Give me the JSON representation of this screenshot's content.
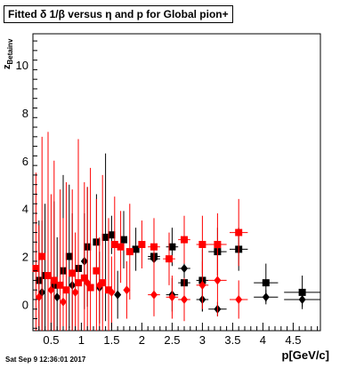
{
  "chart_data": {
    "type": "scatter",
    "title": "Fitted δ 1/β versus η and p for Global pion+",
    "xlabel": "p[GeV/c]",
    "ylabel": "z",
    "ylabel_sub": "Betainv",
    "xlim": [
      0.2,
      4.95
    ],
    "ylim": [
      -1.1,
      11.3
    ],
    "xticks": [
      "0.5",
      "1",
      "1.5",
      "2",
      "2.5",
      "3",
      "3.5",
      "4",
      "4.5"
    ],
    "xtick_values": [
      0.5,
      1.0,
      1.5,
      2.0,
      2.5,
      3.0,
      3.5,
      4.0,
      4.5
    ],
    "yticks": [
      "0",
      "2",
      "4",
      "6",
      "8",
      "10"
    ],
    "ytick_values": [
      0,
      2,
      4,
      6,
      8,
      10
    ],
    "colors": {
      "black": "#000000",
      "red": "#ff0000"
    },
    "series": [
      {
        "color": "#000000",
        "marker": "square",
        "points": [
          {
            "x": 0.3,
            "y": 1.0,
            "ex": 0.05,
            "ey": 2.5
          },
          {
            "x": 0.4,
            "y": 1.2,
            "ex": 0.05,
            "ey": 3.0
          },
          {
            "x": 0.55,
            "y": 0.8,
            "ex": 0.05,
            "ey": 3.5
          },
          {
            "x": 0.7,
            "y": 1.4,
            "ex": 0.05,
            "ey": 4.0
          },
          {
            "x": 0.8,
            "y": 2.0,
            "ex": 0.05,
            "ey": 3.0
          },
          {
            "x": 0.95,
            "y": 1.5,
            "ex": 0.05,
            "ey": 5.0
          },
          {
            "x": 1.1,
            "y": 2.4,
            "ex": 0.05,
            "ey": 2.5
          },
          {
            "x": 1.25,
            "y": 2.6,
            "ex": 0.05,
            "ey": 2.0
          },
          {
            "x": 1.4,
            "y": 2.8,
            "ex": 0.05,
            "ey": 3.5
          },
          {
            "x": 1.5,
            "y": 2.9,
            "ex": 0.05,
            "ey": 0.8
          },
          {
            "x": 1.7,
            "y": 2.7,
            "ex": 0.05,
            "ey": 1.2
          },
          {
            "x": 1.9,
            "y": 2.3,
            "ex": 0.05,
            "ey": 0.9
          },
          {
            "x": 2.2,
            "y": 2.0,
            "ex": 0.1,
            "ey": 0.7
          },
          {
            "x": 2.5,
            "y": 2.4,
            "ex": 0.1,
            "ey": 0.8
          },
          {
            "x": 2.7,
            "y": 0.9,
            "ex": 0.1,
            "ey": 1.1
          },
          {
            "x": 3.0,
            "y": 1.0,
            "ex": 0.1,
            "ey": 1.3
          },
          {
            "x": 3.25,
            "y": 2.2,
            "ex": 0.15,
            "ey": 1.0
          },
          {
            "x": 3.6,
            "y": 2.3,
            "ex": 0.15,
            "ey": 0.9
          },
          {
            "x": 4.05,
            "y": 0.9,
            "ex": 0.2,
            "ey": 0.8
          },
          {
            "x": 4.65,
            "y": 0.5,
            "ex": 0.3,
            "ey": 0.7
          }
        ]
      },
      {
        "color": "#000000",
        "marker": "diamond",
        "points": [
          {
            "x": 0.35,
            "y": 0.5,
            "ex": 0.05,
            "ey": 3.0
          },
          {
            "x": 0.6,
            "y": 0.3,
            "ex": 0.05,
            "ey": 2.5
          },
          {
            "x": 0.85,
            "y": 0.8,
            "ex": 0.05,
            "ey": 3.0
          },
          {
            "x": 1.05,
            "y": 1.8,
            "ex": 0.05,
            "ey": 2.0
          },
          {
            "x": 1.3,
            "y": 0.7,
            "ex": 0.05,
            "ey": 1.5
          },
          {
            "x": 1.6,
            "y": 0.4,
            "ex": 0.05,
            "ey": 1.0
          },
          {
            "x": 2.2,
            "y": 1.9,
            "ex": 0.1,
            "ey": 0.9
          },
          {
            "x": 2.5,
            "y": 0.4,
            "ex": 0.1,
            "ey": 0.7
          },
          {
            "x": 2.7,
            "y": 1.5,
            "ex": 0.1,
            "ey": 1.0
          },
          {
            "x": 3.0,
            "y": 0.2,
            "ex": 0.1,
            "ey": 0.5
          },
          {
            "x": 3.25,
            "y": -0.2,
            "ex": 0.15,
            "ey": 0.3
          },
          {
            "x": 4.05,
            "y": 0.3,
            "ex": 0.2,
            "ey": 0.3
          },
          {
            "x": 4.65,
            "y": 0.2,
            "ex": 0.3,
            "ey": 0.3
          }
        ]
      },
      {
        "color": "#ff0000",
        "marker": "square",
        "points": [
          {
            "x": 0.25,
            "y": 1.5,
            "ex": 0.05,
            "ey": 4.0
          },
          {
            "x": 0.35,
            "y": 2.0,
            "ex": 0.05,
            "ey": 5.0
          },
          {
            "x": 0.45,
            "y": 1.2,
            "ex": 0.05,
            "ey": 6.0
          },
          {
            "x": 0.55,
            "y": 1.0,
            "ex": 0.05,
            "ey": 5.0
          },
          {
            "x": 0.65,
            "y": 0.8,
            "ex": 0.05,
            "ey": 4.0
          },
          {
            "x": 0.75,
            "y": 0.6,
            "ex": 0.05,
            "ey": 4.5
          },
          {
            "x": 0.85,
            "y": 1.3,
            "ex": 0.05,
            "ey": 3.5
          },
          {
            "x": 0.95,
            "y": 0.9,
            "ex": 0.05,
            "ey": 6.0
          },
          {
            "x": 1.05,
            "y": 1.1,
            "ex": 0.05,
            "ey": 4.0
          },
          {
            "x": 1.15,
            "y": 0.7,
            "ex": 0.05,
            "ey": 5.0
          },
          {
            "x": 1.25,
            "y": 1.4,
            "ex": 0.05,
            "ey": 3.0
          },
          {
            "x": 1.35,
            "y": 0.9,
            "ex": 0.05,
            "ey": 4.5
          },
          {
            "x": 1.45,
            "y": 0.6,
            "ex": 0.05,
            "ey": 3.0
          },
          {
            "x": 1.55,
            "y": 2.5,
            "ex": 0.05,
            "ey": 2.0
          },
          {
            "x": 1.65,
            "y": 2.4,
            "ex": 0.05,
            "ey": 1.5
          },
          {
            "x": 1.8,
            "y": 2.2,
            "ex": 0.05,
            "ey": 2.0
          },
          {
            "x": 2.0,
            "y": 2.5,
            "ex": 0.05,
            "ey": 1.0
          },
          {
            "x": 2.2,
            "y": 2.4,
            "ex": 0.1,
            "ey": 1.2
          },
          {
            "x": 2.45,
            "y": 1.9,
            "ex": 0.1,
            "ey": 1.1
          },
          {
            "x": 2.7,
            "y": 2.7,
            "ex": 0.1,
            "ey": 1.0
          },
          {
            "x": 3.0,
            "y": 2.5,
            "ex": 0.1,
            "ey": 1.2
          },
          {
            "x": 3.25,
            "y": 2.5,
            "ex": 0.15,
            "ey": 1.3
          },
          {
            "x": 3.6,
            "y": 3.0,
            "ex": 0.15,
            "ey": 1.4
          }
        ]
      },
      {
        "color": "#ff0000",
        "marker": "diamond",
        "points": [
          {
            "x": 0.3,
            "y": 0.3,
            "ex": 0.05,
            "ey": 3.0
          },
          {
            "x": 0.5,
            "y": 0.6,
            "ex": 0.05,
            "ey": 4.0
          },
          {
            "x": 0.7,
            "y": 0.1,
            "ex": 0.05,
            "ey": 3.5
          },
          {
            "x": 0.9,
            "y": 0.5,
            "ex": 0.05,
            "ey": 2.5
          },
          {
            "x": 1.1,
            "y": 0.9,
            "ex": 0.05,
            "ey": 4.0
          },
          {
            "x": 1.3,
            "y": 0.8,
            "ex": 0.05,
            "ey": 2.0
          },
          {
            "x": 1.5,
            "y": 0.5,
            "ex": 0.05,
            "ey": 1.5
          },
          {
            "x": 1.75,
            "y": 0.6,
            "ex": 0.05,
            "ey": 1.2
          },
          {
            "x": 2.2,
            "y": 0.4,
            "ex": 0.1,
            "ey": 0.9
          },
          {
            "x": 2.5,
            "y": 0.3,
            "ex": 0.1,
            "ey": 0.9
          },
          {
            "x": 2.7,
            "y": 0.2,
            "ex": 0.1,
            "ey": 0.9
          },
          {
            "x": 3.0,
            "y": 0.8,
            "ex": 0.1,
            "ey": 1.0
          },
          {
            "x": 3.25,
            "y": 1.0,
            "ex": 0.15,
            "ey": 1.5
          },
          {
            "x": 3.6,
            "y": 0.2,
            "ex": 0.15,
            "ey": 0.8
          }
        ]
      }
    ]
  },
  "footer": {
    "datestamp": "Sat Sep  9 12:36:01 2017"
  }
}
